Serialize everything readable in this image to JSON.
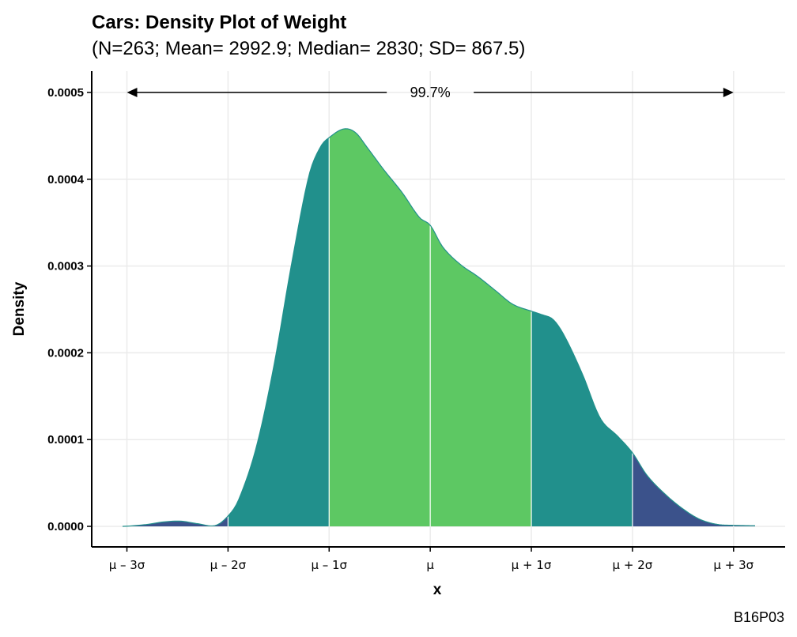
{
  "chart_data": {
    "type": "area",
    "title": "Cars: Density Plot of Weight",
    "subtitle": "(N=263; Mean= 2992.9; Median= 2830; SD= 867.5)",
    "xlabel": "x",
    "ylabel": "Density",
    "caption": "B16P03",
    "mean": 2992.9,
    "sd": 867.5,
    "xlim": [
      353,
      5780
    ],
    "ylim": [
      0,
      0.00052
    ],
    "yticks": [
      0,
      0.0001,
      0.0002,
      0.0003,
      0.0004,
      0.0005
    ],
    "ytick_labels": [
      "0.0000",
      "0.0001",
      "0.0002",
      "0.0003",
      "0.0004",
      "0.0005"
    ],
    "xticks": [
      390.4,
      1257.9,
      2125.4,
      2992.9,
      3860.4,
      4727.9,
      5595.4
    ],
    "xtick_labels": [
      "μ – 3σ",
      "μ – 2σ",
      "μ – 1σ",
      "μ",
      "μ + 1σ",
      "μ + 2σ",
      "μ + 3σ"
    ],
    "annotation": {
      "text": "99.7%",
      "x_from": 390.4,
      "x_to": 5595.4,
      "y": 0.0005
    },
    "density": {
      "x": [
        353,
        550,
        700,
        850,
        1000,
        1150,
        1257.9,
        1350,
        1500,
        1650,
        1800,
        1950,
        2050,
        2125.4,
        2250,
        2350,
        2450,
        2600,
        2750,
        2900,
        2992.9,
        3100,
        3250,
        3400,
        3550,
        3700,
        3860.4,
        3950,
        4050,
        4150,
        4300,
        4450,
        4600,
        4727.9,
        4850,
        5000,
        5150,
        5300,
        5450,
        5595.4,
        5780
      ],
      "y": [
        0.0,
        2e-06,
        5e-06,
        6e-06,
        3e-06,
        1e-06,
        1.2e-05,
        3.1e-05,
        9.1e-05,
        0.000184,
        0.0003,
        0.000403,
        0.000437,
        0.000448,
        0.000458,
        0.000454,
        0.000437,
        0.00041,
        0.000385,
        0.000356,
        0.000347,
        0.000322,
        0.000302,
        0.000288,
        0.000272,
        0.000256,
        0.000248,
        0.000244,
        0.000238,
        0.000218,
        0.000175,
        0.000125,
        0.000104,
        8.48e-05,
        5.93e-05,
        3.81e-05,
        2.12e-05,
        8.5e-06,
        2.4e-06,
        1.2e-06,
        7e-07
      ]
    },
    "regions": [
      {
        "from": 353,
        "to": 390.4,
        "fill": "#440154"
      },
      {
        "from": 390.4,
        "to": 1257.9,
        "fill": "#3b528b"
      },
      {
        "from": 1257.9,
        "to": 2125.4,
        "fill": "#21908c"
      },
      {
        "from": 2125.4,
        "to": 3860.4,
        "fill": "#5dc863"
      },
      {
        "from": 3860.4,
        "to": 4727.9,
        "fill": "#21908c"
      },
      {
        "from": 4727.9,
        "to": 5780,
        "fill": "#3b528b"
      }
    ],
    "curve_color": "#21908c",
    "grid": true
  }
}
